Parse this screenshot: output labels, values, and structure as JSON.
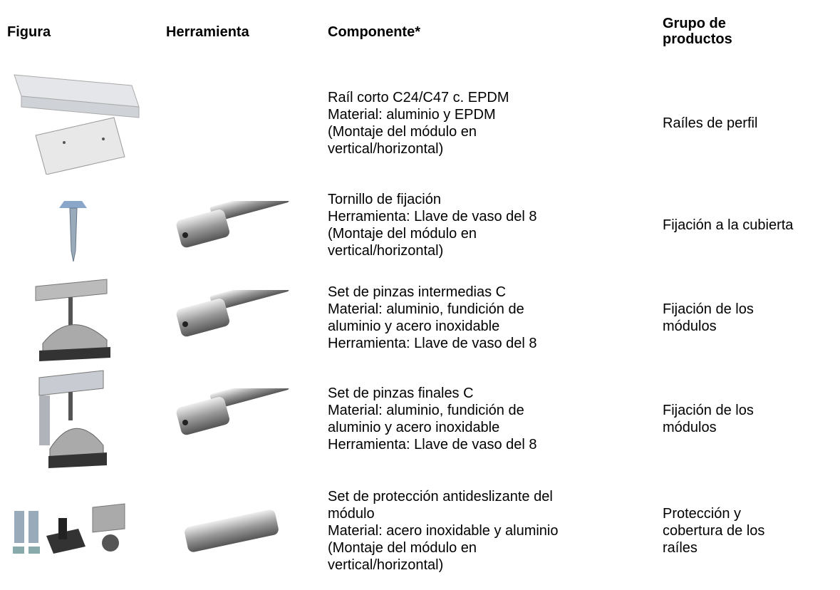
{
  "table": {
    "header": {
      "figure": "Figura",
      "tool": "Herramienta",
      "component": "Componente*",
      "group": [
        "Grupo de",
        "productos"
      ]
    },
    "rows": [
      {
        "component": [
          "Raíl corto C24/C47 c. EPDM",
          "Material: aluminio y EPDM",
          "(Montaje del módulo en",
          "vertical/horizontal)"
        ],
        "group": [
          "Raíles de perfil"
        ]
      },
      {
        "component": [
          "Tornillo de fijación",
          "Herramienta: Llave de vaso del 8",
          "(Montaje del módulo en",
          "vertical/horizontal)"
        ],
        "group": [
          "Fijación a la cubierta"
        ]
      },
      {
        "component": [
          "Set de pinzas intermedias C",
          "Material: aluminio, fundición de",
          "aluminio y acero inoxidable",
          "Herramienta: Llave de vaso del 8"
        ],
        "group": [
          "Fijación de los",
          "módulos"
        ]
      },
      {
        "component": [
          "Set de pinzas finales C",
          "Material: aluminio, fundición de",
          "aluminio y acero inoxidable",
          "Herramienta: Llave de vaso del 8"
        ],
        "group": [
          "Fijación de los",
          "módulos"
        ]
      },
      {
        "component": [
          "Set de protección antideslizante del",
          "módulo",
          "Material: acero inoxidable y aluminio",
          "(Montaje del módulo en",
          "vertical/horizontal)"
        ],
        "group": [
          "Protección y",
          "cobertura de los",
          "raíles"
        ]
      }
    ]
  }
}
